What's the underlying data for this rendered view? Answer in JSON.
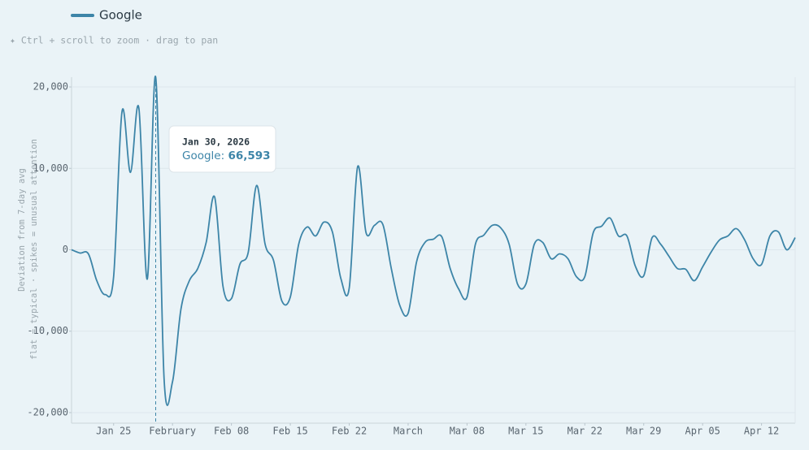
{
  "chart_data": {
    "type": "line",
    "hint": "✦ Ctrl + scroll to zoom · drag to pan",
    "ylabel": "Deviation from 7-day avg",
    "ylabel2": "flat = typical · spikes = unusual attention",
    "x": [
      "2026-01-20",
      "2026-01-21",
      "2026-01-22",
      "2026-01-23",
      "2026-01-24",
      "2026-01-25",
      "2026-01-26",
      "2026-01-27",
      "2026-01-28",
      "2026-01-29",
      "2026-01-30",
      "2026-01-31",
      "2026-02-01",
      "2026-02-02",
      "2026-02-03",
      "2026-02-04",
      "2026-02-05",
      "2026-02-06",
      "2026-02-07",
      "2026-02-08",
      "2026-02-09",
      "2026-02-10",
      "2026-02-11",
      "2026-02-12",
      "2026-02-13",
      "2026-02-14",
      "2026-02-15",
      "2026-02-16",
      "2026-02-17",
      "2026-02-18",
      "2026-02-19",
      "2026-02-20",
      "2026-02-21",
      "2026-02-22",
      "2026-02-23",
      "2026-02-24",
      "2026-02-25",
      "2026-02-26",
      "2026-02-27",
      "2026-02-28",
      "2026-03-01",
      "2026-03-02",
      "2026-03-03",
      "2026-03-04",
      "2026-03-05",
      "2026-03-06",
      "2026-03-07",
      "2026-03-08",
      "2026-03-09",
      "2026-03-10",
      "2026-03-11",
      "2026-03-12",
      "2026-03-13",
      "2026-03-14",
      "2026-03-15",
      "2026-03-16",
      "2026-03-17",
      "2026-03-18",
      "2026-03-19",
      "2026-03-20",
      "2026-03-21",
      "2026-03-22",
      "2026-03-23",
      "2026-03-24",
      "2026-03-25",
      "2026-03-26",
      "2026-03-27",
      "2026-03-28",
      "2026-03-29",
      "2026-03-30",
      "2026-03-31",
      "2026-04-01",
      "2026-04-02",
      "2026-04-03",
      "2026-04-04",
      "2026-04-05",
      "2026-04-06",
      "2026-04-07",
      "2026-04-08",
      "2026-04-09",
      "2026-04-10",
      "2026-04-11",
      "2026-04-12",
      "2026-04-13",
      "2026-04-14",
      "2026-04-15",
      "2026-04-16"
    ],
    "series": [
      {
        "name": "Google",
        "color": "#3d85a8",
        "values": [
          0,
          -400,
          -500,
          -3800,
          -5500,
          -3300,
          17000,
          9500,
          17400,
          -3600,
          21200,
          -15900,
          -16200,
          -7300,
          -3800,
          -2300,
          900,
          6500,
          -4500,
          -6000,
          -1800,
          -300,
          7900,
          700,
          -1300,
          -6300,
          -5800,
          700,
          2800,
          1700,
          3400,
          2200,
          -3500,
          -4700,
          10200,
          2100,
          3000,
          3100,
          -2300,
          -6800,
          -7800,
          -1500,
          900,
          1300,
          1600,
          -2300,
          -4800,
          -5800,
          700,
          1800,
          3000,
          2700,
          700,
          -4200,
          -4200,
          700,
          900,
          -1100,
          -500,
          -1100,
          -3300,
          -3300,
          2100,
          2900,
          3900,
          1700,
          1700,
          -2000,
          -3200,
          1500,
          700,
          -800,
          -2300,
          -2400,
          -3800,
          -2100,
          -300,
          1200,
          1700,
          2600,
          1200,
          -1100,
          -1800,
          1700,
          2200,
          0,
          1500
        ]
      }
    ],
    "xlim": [
      "2026-01-20",
      "2026-04-16"
    ],
    "xticks": [
      {
        "value": "2026-01-25",
        "label": "Jan 25"
      },
      {
        "value": "2026-02-01",
        "label": "February"
      },
      {
        "value": "2026-02-08",
        "label": "Feb 08"
      },
      {
        "value": "2026-02-15",
        "label": "Feb 15"
      },
      {
        "value": "2026-02-22",
        "label": "Feb 22"
      },
      {
        "value": "2026-03-01",
        "label": "March"
      },
      {
        "value": "2026-03-08",
        "label": "Mar 08"
      },
      {
        "value": "2026-03-15",
        "label": "Mar 15"
      },
      {
        "value": "2026-03-22",
        "label": "Mar 22"
      },
      {
        "value": "2026-03-29",
        "label": "Mar 29"
      },
      {
        "value": "2026-04-05",
        "label": "Apr 05"
      },
      {
        "value": "2026-04-12",
        "label": "Apr 12"
      }
    ],
    "ylim": [
      -21300,
      21200
    ],
    "yticks": [
      {
        "value": -20000,
        "label": "-20,000"
      },
      {
        "value": -10000,
        "label": "-10,000"
      },
      0,
      {
        "value": 10000,
        "label": "10,000"
      },
      {
        "value": 20000,
        "label": "20,000"
      }
    ],
    "grid": true,
    "tooltip": {
      "x": "2026-01-30",
      "date": "Jan 30, 2026",
      "series": "Google:",
      "value": 66593,
      "value_label": "66,593"
    }
  }
}
